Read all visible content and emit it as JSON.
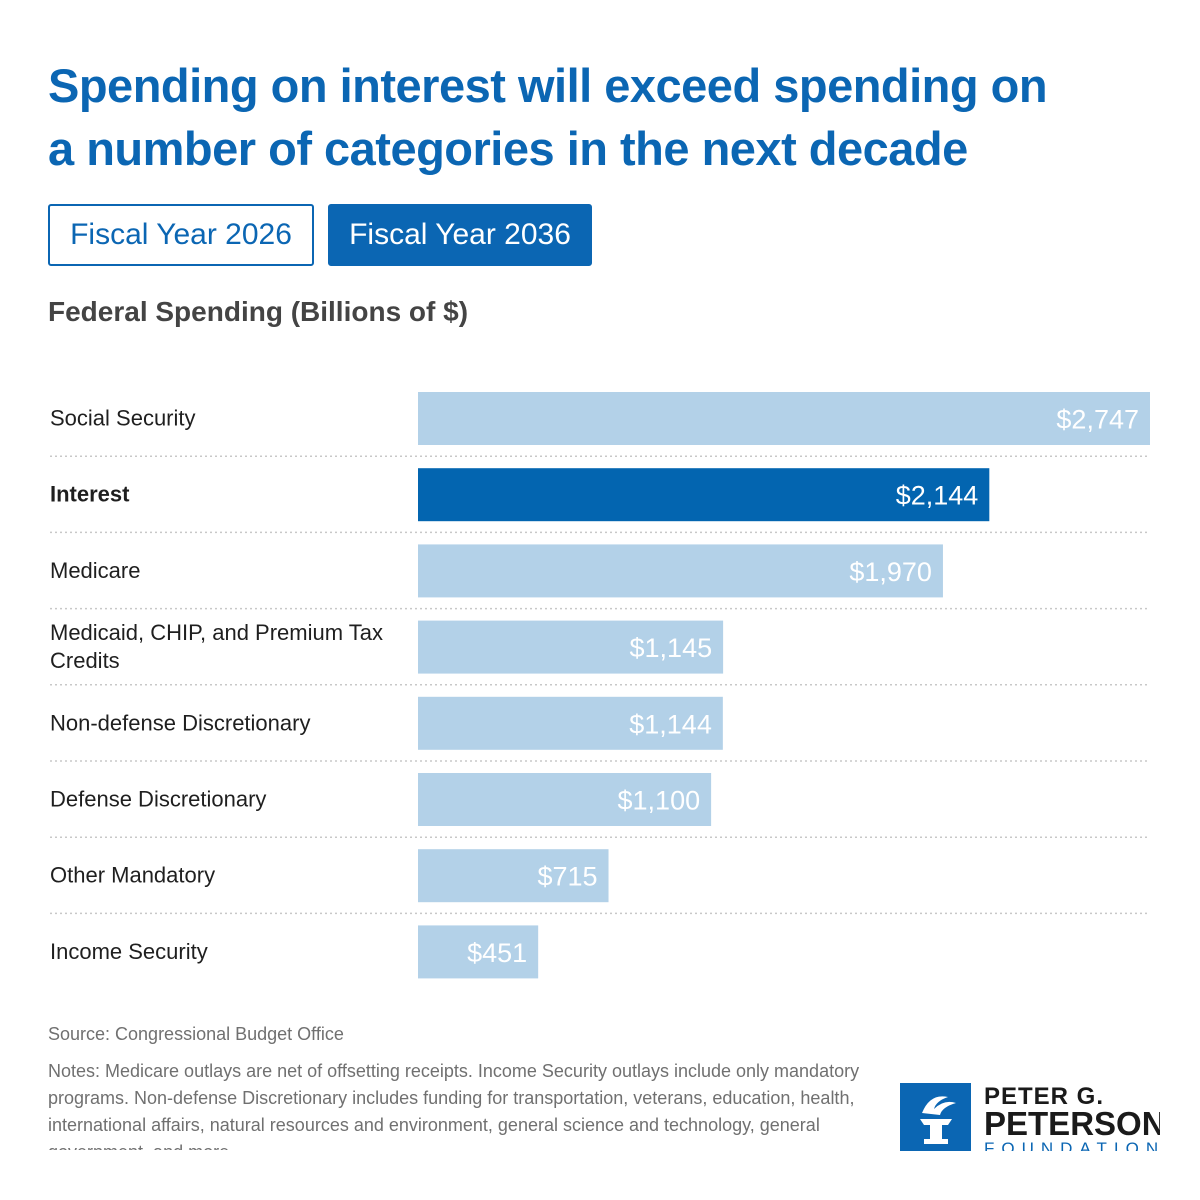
{
  "title": "Spending on interest will exceed spending on a number of categories in the next decade",
  "tabs": [
    {
      "label": "Fiscal Year 2026",
      "active": false
    },
    {
      "label": "Fiscal Year 2036",
      "active": true
    }
  ],
  "subtitle": "Federal Spending (Billions of $)",
  "colors": {
    "accent": "#0b66b3",
    "bar_light": "#b3d1e8",
    "bar_highlight": "#0365b0"
  },
  "chart_data": {
    "type": "bar",
    "orientation": "horizontal",
    "title": "Federal Spending (Billions of $)",
    "categories": [
      "Social Security",
      "Interest",
      "Medicare",
      "Medicaid, CHIP, and Premium Tax Credits",
      "Non-defense Discretionary",
      "Defense Discretionary",
      "Other Mandatory",
      "Income Security"
    ],
    "values": [
      2747,
      2144,
      1970,
      1145,
      1144,
      1100,
      715,
      451
    ],
    "labels": [
      "$2,747",
      "$2,144",
      "$1,970",
      "$1,145",
      "$1,144",
      "$1,100",
      "$715",
      "$451"
    ],
    "highlight": "Interest",
    "xlim": [
      0,
      2747
    ],
    "grid": false
  },
  "source": "Source: Congressional Budget Office",
  "notes": "Notes: Medicare outlays are net of offsetting receipts. Income Security outlays include only mandatory programs. Non-defense Discretionary includes funding for transportation, veterans, education, health, international affairs, natural resources and environment, general science and technology, general government, and more.",
  "logo": {
    "line1": "PETER G.",
    "line2": "PETERSON",
    "line3": "FOUNDATION"
  }
}
